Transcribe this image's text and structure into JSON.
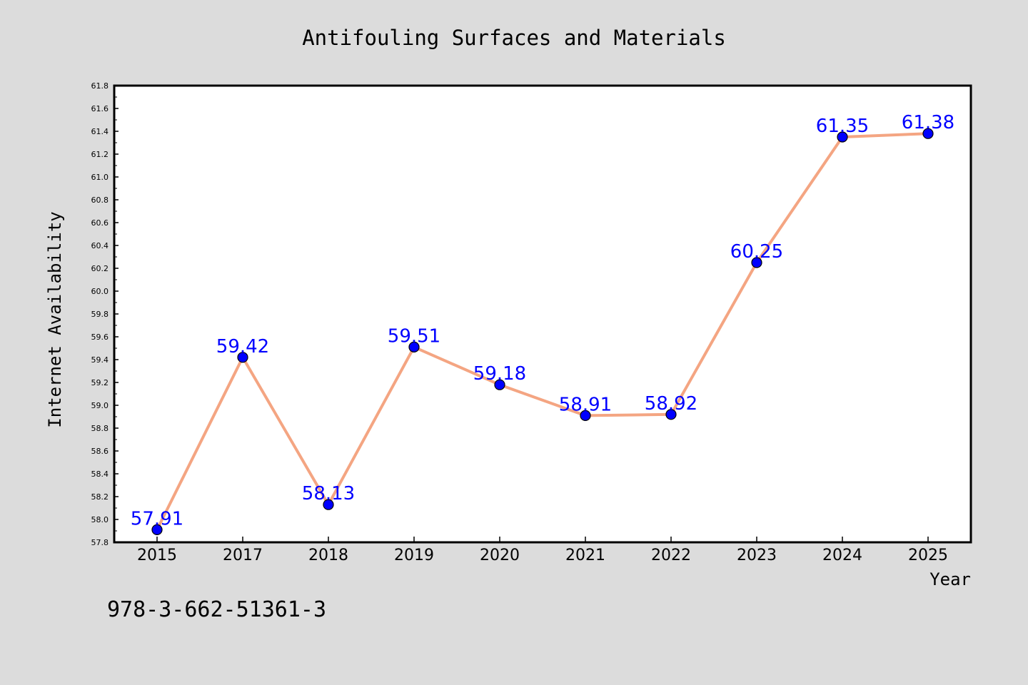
{
  "chart_data": {
    "type": "line",
    "title": "Antifouling Surfaces and Materials",
    "xlabel": "Year",
    "ylabel": "Internet Availability",
    "categories": [
      "2015",
      "2017",
      "2018",
      "2019",
      "2020",
      "2021",
      "2022",
      "2023",
      "2024",
      "2025"
    ],
    "series": [
      {
        "values": [
          57.91,
          59.42,
          58.13,
          59.51,
          59.18,
          58.91,
          58.92,
          60.25,
          61.35,
          61.38
        ],
        "data_labels": [
          "57.91",
          "59.42",
          "58.13",
          "59.51",
          "59.18",
          "58.91",
          "58.92",
          "60.25",
          "61.35",
          "61.38"
        ],
        "line_color": "#f4a582",
        "marker_color": "#0000ff",
        "label_color": "#0000ff"
      }
    ],
    "ylim": [
      57.8,
      61.8
    ],
    "yticks": [
      "57.8",
      "58.0",
      "58.2",
      "58.4",
      "58.6",
      "58.8",
      "59.0",
      "59.2",
      "59.4",
      "59.6",
      "59.8",
      "60.0",
      "60.2",
      "60.4",
      "60.6",
      "60.8",
      "61.0",
      "61.2",
      "61.4",
      "61.6",
      "61.8"
    ],
    "grid": false,
    "background_color": "#dcdcdc",
    "plot_background_color": "#ffffff"
  },
  "footer_code": "978-3-662-51361-3"
}
